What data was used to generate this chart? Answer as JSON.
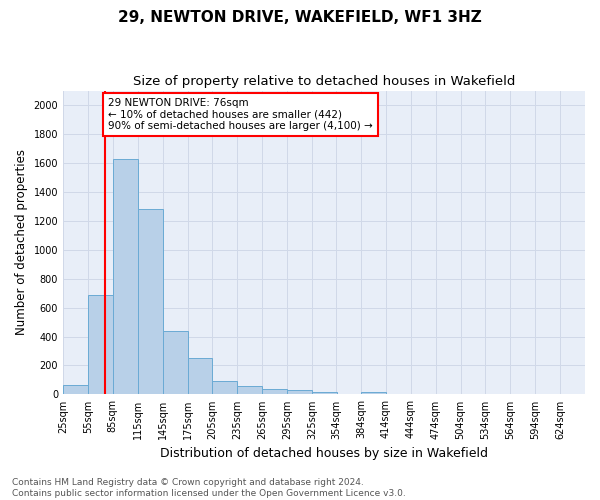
{
  "title": "29, NEWTON DRIVE, WAKEFIELD, WF1 3HZ",
  "subtitle": "Size of property relative to detached houses in Wakefield",
  "xlabel": "Distribution of detached houses by size in Wakefield",
  "ylabel": "Number of detached properties",
  "bin_labels": [
    "25sqm",
    "55sqm",
    "85sqm",
    "115sqm",
    "145sqm",
    "175sqm",
    "205sqm",
    "235sqm",
    "265sqm",
    "295sqm",
    "325sqm",
    "354sqm",
    "384sqm",
    "414sqm",
    "444sqm",
    "474sqm",
    "504sqm",
    "534sqm",
    "564sqm",
    "594sqm",
    "624sqm"
  ],
  "bin_starts": [
    25,
    55,
    85,
    115,
    145,
    175,
    205,
    235,
    265,
    295,
    325,
    354,
    384,
    414,
    444,
    474,
    504,
    534,
    564,
    594,
    624
  ],
  "bar_heights": [
    65,
    690,
    1630,
    1280,
    440,
    250,
    90,
    55,
    40,
    30,
    20,
    0,
    20,
    0,
    0,
    0,
    0,
    0,
    0,
    0
  ],
  "bar_color": "#b8d0e8",
  "bar_edge_color": "#6aaad4",
  "property_size": 76,
  "property_line_color": "#ff0000",
  "annotation_text_line1": "29 NEWTON DRIVE: 76sqm",
  "annotation_text_line2": "← 10% of detached houses are smaller (442)",
  "annotation_text_line3": "90% of semi-detached houses are larger (4,100) →",
  "ylim": [
    0,
    2100
  ],
  "yticks": [
    0,
    200,
    400,
    600,
    800,
    1000,
    1200,
    1400,
    1600,
    1800,
    2000
  ],
  "grid_color": "#d0d8e8",
  "plot_bg_color": "#e8eef8",
  "background_color": "#ffffff",
  "footer_line1": "Contains HM Land Registry data © Crown copyright and database right 2024.",
  "footer_line2": "Contains public sector information licensed under the Open Government Licence v3.0.",
  "title_fontsize": 11,
  "subtitle_fontsize": 9.5,
  "xlabel_fontsize": 9,
  "ylabel_fontsize": 8.5,
  "tick_fontsize": 7,
  "footer_fontsize": 6.5,
  "annotation_fontsize": 7.5
}
